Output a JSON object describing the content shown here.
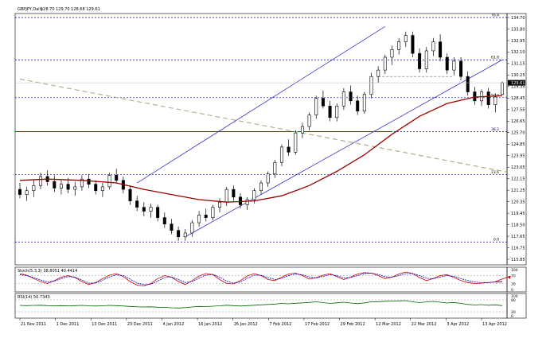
{
  "chart_data": [
    {
      "type": "candlestick",
      "title": "GBPJPY,Daily",
      "ohlc_text": "128.70 129.70 128.68 129.61",
      "last_price": "129.61",
      "ylim": [
        115.85,
        134.7
      ],
      "y_tick_labels": [
        "134.70",
        "133.80",
        "132.95",
        "132.10",
        "131.15",
        "130.25",
        "129.35",
        "128.45",
        "127.55",
        "126.65",
        "125.70",
        "124.85",
        "123.95",
        "123.05",
        "122.15",
        "121.25",
        "120.35",
        "119.45",
        "118.50",
        "117.65",
        "116.75",
        "115.85"
      ],
      "x_tick_labels": [
        "21 Nov 2011",
        "1 Dec 2011",
        "13 Dec 2011",
        "23 Dec 2011",
        "4 Jan 2012",
        "16 Jan 2012",
        "26 Jan 2012",
        "7 Feb 2012",
        "17 Feb 2012",
        "29 Feb 2012",
        "12 Mar 2012",
        "22 Mar 2012",
        "3 Apr 2012",
        "13 Apr 2012"
      ],
      "fib_levels": [
        {
          "label": "76.4",
          "value": 134.7,
          "color": "#0000cc"
        },
        {
          "label": "61.8",
          "value": 131.4,
          "color": "#0000cc"
        },
        {
          "label": "50.0",
          "value": 128.45,
          "color": "#0000cc"
        },
        {
          "label": "38.2",
          "value": 125.8,
          "color": "#0000cc"
        },
        {
          "label": "23.6",
          "value": 122.45,
          "color": "#0000cc"
        },
        {
          "label": "0.0",
          "value": 117.2,
          "color": "#0000cc"
        }
      ],
      "support_resistance": [
        {
          "value": 125.8,
          "color": "#cc0000"
        }
      ],
      "moving_average_color": "#990000",
      "channel_color": "#3333cc",
      "trendline_color": "#b0b090",
      "candles": [
        [
          121.3,
          121.8,
          120.6,
          120.9
        ],
        [
          120.9,
          121.5,
          120.4,
          121.2
        ],
        [
          121.2,
          122.0,
          120.7,
          121.6
        ],
        [
          121.6,
          122.6,
          121.3,
          122.3
        ],
        [
          122.3,
          122.8,
          121.6,
          121.9
        ],
        [
          121.9,
          122.4,
          121.1,
          121.4
        ],
        [
          121.4,
          122.0,
          120.9,
          121.7
        ],
        [
          121.7,
          122.2,
          121.0,
          121.3
        ],
        [
          121.3,
          121.9,
          120.8,
          121.5
        ],
        [
          121.5,
          122.4,
          121.2,
          122.1
        ],
        [
          122.1,
          122.5,
          121.4,
          121.7
        ],
        [
          121.7,
          122.0,
          120.9,
          121.2
        ],
        [
          121.2,
          121.8,
          120.7,
          121.5
        ],
        [
          121.5,
          122.6,
          121.3,
          122.4
        ],
        [
          122.4,
          122.9,
          121.8,
          122.0
        ],
        [
          122.0,
          122.3,
          121.0,
          121.3
        ],
        [
          121.3,
          121.6,
          120.1,
          120.4
        ],
        [
          120.4,
          120.8,
          119.6,
          119.9
        ],
        [
          119.9,
          120.3,
          119.2,
          119.6
        ],
        [
          119.6,
          120.2,
          119.1,
          119.9
        ],
        [
          119.9,
          120.1,
          118.8,
          119.1
        ],
        [
          119.1,
          119.5,
          118.3,
          118.6
        ],
        [
          118.6,
          119.0,
          117.8,
          118.1
        ],
        [
          118.1,
          118.4,
          117.3,
          117.6
        ],
        [
          117.6,
          118.2,
          117.3,
          117.9
        ],
        [
          117.9,
          118.9,
          117.6,
          118.7
        ],
        [
          118.7,
          119.6,
          118.4,
          119.3
        ],
        [
          119.3,
          119.8,
          118.8,
          119.1
        ],
        [
          119.1,
          120.1,
          118.9,
          119.9
        ],
        [
          119.9,
          120.6,
          119.5,
          120.3
        ],
        [
          120.3,
          121.5,
          120.0,
          121.3
        ],
        [
          121.3,
          121.6,
          120.4,
          120.7
        ],
        [
          120.7,
          121.0,
          119.8,
          120.1
        ],
        [
          120.1,
          120.7,
          119.7,
          120.5
        ],
        [
          120.5,
          121.4,
          120.2,
          121.2
        ],
        [
          121.2,
          122.0,
          120.9,
          121.8
        ],
        [
          121.8,
          122.7,
          121.5,
          122.5
        ],
        [
          122.5,
          123.6,
          122.2,
          123.4
        ],
        [
          123.4,
          124.8,
          123.1,
          124.6
        ],
        [
          124.6,
          125.2,
          123.9,
          124.2
        ],
        [
          124.2,
          125.9,
          124.0,
          125.7
        ],
        [
          125.7,
          126.5,
          125.3,
          126.2
        ],
        [
          126.2,
          127.3,
          125.9,
          127.1
        ],
        [
          127.1,
          128.6,
          126.8,
          128.4
        ],
        [
          128.4,
          129.0,
          127.6,
          127.8
        ],
        [
          127.8,
          128.2,
          126.6,
          126.9
        ],
        [
          126.9,
          128.0,
          126.6,
          127.8
        ],
        [
          127.8,
          129.2,
          127.5,
          128.9
        ],
        [
          128.9,
          129.4,
          127.9,
          128.2
        ],
        [
          128.2,
          128.6,
          127.1,
          127.4
        ],
        [
          127.4,
          128.9,
          127.2,
          128.7
        ],
        [
          128.7,
          130.4,
          128.4,
          130.1
        ],
        [
          130.1,
          130.9,
          129.6,
          130.6
        ],
        [
          130.6,
          131.8,
          130.3,
          131.6
        ],
        [
          131.6,
          132.5,
          131.0,
          132.2
        ],
        [
          132.2,
          133.1,
          131.8,
          132.8
        ],
        [
          132.8,
          133.6,
          132.4,
          133.3
        ],
        [
          133.3,
          133.6,
          131.6,
          131.9
        ],
        [
          131.9,
          132.3,
          130.4,
          130.7
        ],
        [
          130.7,
          132.4,
          130.4,
          132.1
        ],
        [
          132.1,
          133.1,
          131.7,
          132.8
        ],
        [
          132.8,
          133.4,
          131.3,
          131.6
        ],
        [
          131.6,
          131.9,
          130.3,
          130.6
        ],
        [
          130.6,
          131.6,
          130.2,
          131.3
        ],
        [
          131.3,
          131.6,
          129.8,
          130.1
        ],
        [
          130.1,
          130.5,
          128.6,
          128.9
        ],
        [
          128.9,
          129.3,
          127.9,
          128.2
        ],
        [
          128.2,
          129.1,
          127.8,
          128.9
        ],
        [
          128.9,
          129.2,
          127.6,
          127.9
        ],
        [
          127.9,
          128.8,
          127.3,
          128.5
        ],
        [
          128.7,
          129.7,
          128.68,
          129.61
        ]
      ],
      "ma_values": [
        [
          0,
          122.0
        ],
        [
          4,
          122.1
        ],
        [
          9,
          122.0
        ],
        [
          14,
          121.8
        ],
        [
          18,
          121.3
        ],
        [
          22,
          120.9
        ],
        [
          26,
          120.5
        ],
        [
          30,
          120.3
        ],
        [
          34,
          120.4
        ],
        [
          38,
          120.8
        ],
        [
          42,
          121.6
        ],
        [
          46,
          122.7
        ],
        [
          50,
          124.0
        ],
        [
          54,
          125.6
        ],
        [
          58,
          127.0
        ],
        [
          62,
          128.0
        ],
        [
          66,
          128.5
        ],
        [
          70,
          128.6
        ]
      ],
      "channel": {
        "lower": {
          "from": [
            24,
            117.6
          ],
          "to": [
            70,
            131.4
          ]
        },
        "upper": {
          "from": [
            17,
            121.8
          ],
          "to": [
            53,
            134.0
          ]
        }
      },
      "trendline": {
        "from": [
          0,
          129.9
        ],
        "to": [
          70,
          123.0
        ]
      },
      "resistance_segment": {
        "from": [
          52,
          130.1
        ],
        "to": [
          63,
          130.1
        ]
      }
    },
    {
      "type": "line",
      "title": "Stoch(5,3,3) 38.8051 40.4414",
      "ylim": [
        0,
        100
      ],
      "y_tick_labels": [
        "100",
        "70",
        "30",
        "0"
      ],
      "levels": [
        70,
        30
      ],
      "series": [
        {
          "color": "#cc0000",
          "values": [
            80,
            72,
            55,
            40,
            30,
            45,
            62,
            70,
            60,
            40,
            25,
            35,
            55,
            72,
            80,
            65,
            40,
            22,
            18,
            30,
            55,
            70,
            62,
            40,
            25,
            45,
            68,
            80,
            75,
            50,
            30,
            28,
            45,
            68,
            80,
            70,
            50,
            45,
            62,
            78,
            82,
            70,
            52,
            60,
            72,
            80,
            65,
            50,
            62,
            78,
            85,
            82,
            70,
            55,
            62,
            78,
            88,
            80,
            60,
            45,
            55,
            70,
            75,
            60,
            45,
            35,
            30,
            32,
            35,
            38,
            39
          ]
        },
        {
          "color": "#0000cc",
          "values": [
            74,
            70,
            60,
            48,
            38,
            42,
            55,
            65,
            62,
            48,
            32,
            33,
            47,
            63,
            74,
            70,
            52,
            33,
            24,
            26,
            42,
            60,
            63,
            50,
            35,
            40,
            57,
            72,
            76,
            62,
            42,
            32,
            38,
            56,
            72,
            72,
            60,
            50,
            56,
            70,
            78,
            74,
            62,
            58,
            66,
            75,
            70,
            58,
            60,
            70,
            80,
            82,
            76,
            64,
            62,
            70,
            80,
            80,
            70,
            56,
            55,
            63,
            70,
            66,
            55,
            45,
            38,
            34,
            35,
            38,
            40
          ]
        }
      ]
    },
    {
      "type": "line",
      "title": "RSI(14) 50.7343",
      "ylim": [
        0,
        100
      ],
      "y_tick_labels": [
        "100",
        "80",
        "20",
        "0"
      ],
      "series": [
        {
          "color": "#006600",
          "values": [
            52,
            51,
            52,
            53,
            51,
            50,
            51,
            50,
            51,
            52,
            50,
            49,
            50,
            52,
            51,
            49,
            47,
            45,
            44,
            45,
            43,
            42,
            40,
            39,
            41,
            44,
            47,
            46,
            48,
            50,
            53,
            51,
            49,
            51,
            53,
            55,
            57,
            59,
            62,
            60,
            63,
            65,
            67,
            70,
            66,
            62,
            65,
            68,
            64,
            61,
            65,
            70,
            71,
            73,
            74,
            75,
            76,
            70,
            66,
            70,
            72,
            68,
            64,
            67,
            62,
            57,
            54,
            56,
            53,
            55,
            50.7
          ]
        }
      ]
    }
  ]
}
